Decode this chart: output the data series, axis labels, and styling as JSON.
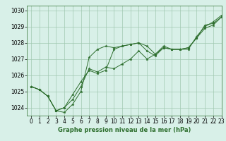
{
  "title": "Graphe pression niveau de la mer (hPa)",
  "background_color": "#d8f0e8",
  "grid_color": "#a0c8b0",
  "line_color": "#2d6e2d",
  "marker_color": "#2d6e2d",
  "xlim": [
    -0.5,
    23
  ],
  "ylim": [
    1023.5,
    1030.3
  ],
  "yticks": [
    1024,
    1025,
    1026,
    1027,
    1028,
    1029,
    1030
  ],
  "xticks": [
    0,
    1,
    2,
    3,
    4,
    5,
    6,
    7,
    8,
    9,
    10,
    11,
    12,
    13,
    14,
    15,
    16,
    17,
    18,
    19,
    20,
    21,
    22,
    23
  ],
  "series": [
    [
      1025.3,
      1025.1,
      1024.7,
      1023.8,
      1023.7,
      1024.2,
      1025.0,
      1027.1,
      1027.6,
      1027.8,
      1027.7,
      1027.8,
      1027.9,
      1028.0,
      1027.8,
      1027.3,
      1027.8,
      1027.6,
      1027.6,
      1027.7,
      1028.3,
      1029.1,
      1029.2,
      1029.6
    ],
    [
      1025.3,
      1025.1,
      1024.7,
      1023.8,
      1024.0,
      1024.5,
      1025.3,
      1026.4,
      1026.2,
      1026.5,
      1026.4,
      1026.7,
      1027.0,
      1027.5,
      1027.0,
      1027.3,
      1027.7,
      1027.6,
      1027.6,
      1027.7,
      1028.3,
      1028.9,
      1029.1,
      1029.6
    ],
    [
      1025.3,
      1025.1,
      1024.7,
      1023.8,
      1024.0,
      1024.8,
      1025.6,
      1026.3,
      1026.1,
      1026.3,
      1027.6,
      1027.8,
      1027.9,
      1028.0,
      1027.5,
      1027.2,
      1027.7,
      1027.6,
      1027.6,
      1027.6,
      1028.4,
      1029.0,
      1029.3,
      1029.7
    ]
  ],
  "xlabel_fontsize": 6,
  "tick_fontsize": 5.5,
  "linewidth": 0.7,
  "markersize": 2.5
}
